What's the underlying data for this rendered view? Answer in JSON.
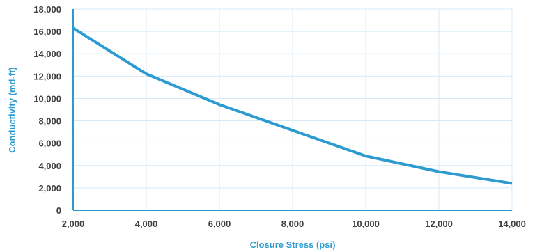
{
  "chart_data": {
    "type": "line",
    "title": "",
    "xlabel": "Closure Stress (psi)",
    "ylabel": "Conductivity (md-ft)",
    "xlim": [
      2000,
      14000
    ],
    "ylim": [
      0,
      18000
    ],
    "grid": true,
    "x_ticks": [
      2000,
      4000,
      6000,
      8000,
      10000,
      12000,
      14000
    ],
    "x_tick_labels": [
      "2,000",
      "4,000",
      "6,000",
      "8,000",
      "10,000",
      "12,000",
      "14,000"
    ],
    "y_ticks": [
      0,
      2000,
      4000,
      6000,
      8000,
      10000,
      12000,
      14000,
      16000,
      18000
    ],
    "y_tick_labels": [
      "0",
      "2,000",
      "4,000",
      "6,000",
      "8,000",
      "10,000",
      "12,000",
      "14,000",
      "16,000",
      "18,000"
    ],
    "series": [
      {
        "x": [
          2000,
          4000,
          6000,
          8000,
          10000,
          12000,
          14000
        ],
        "values": [
          16300,
          12200,
          9450,
          7150,
          4850,
          3450,
          2400
        ]
      }
    ],
    "colors": {
      "line": "#2e9bd0",
      "axis": "#2e9bd0",
      "grid": "#d6e9f5",
      "tick_text": "#404040",
      "title_text": "#2e9bd0"
    }
  }
}
